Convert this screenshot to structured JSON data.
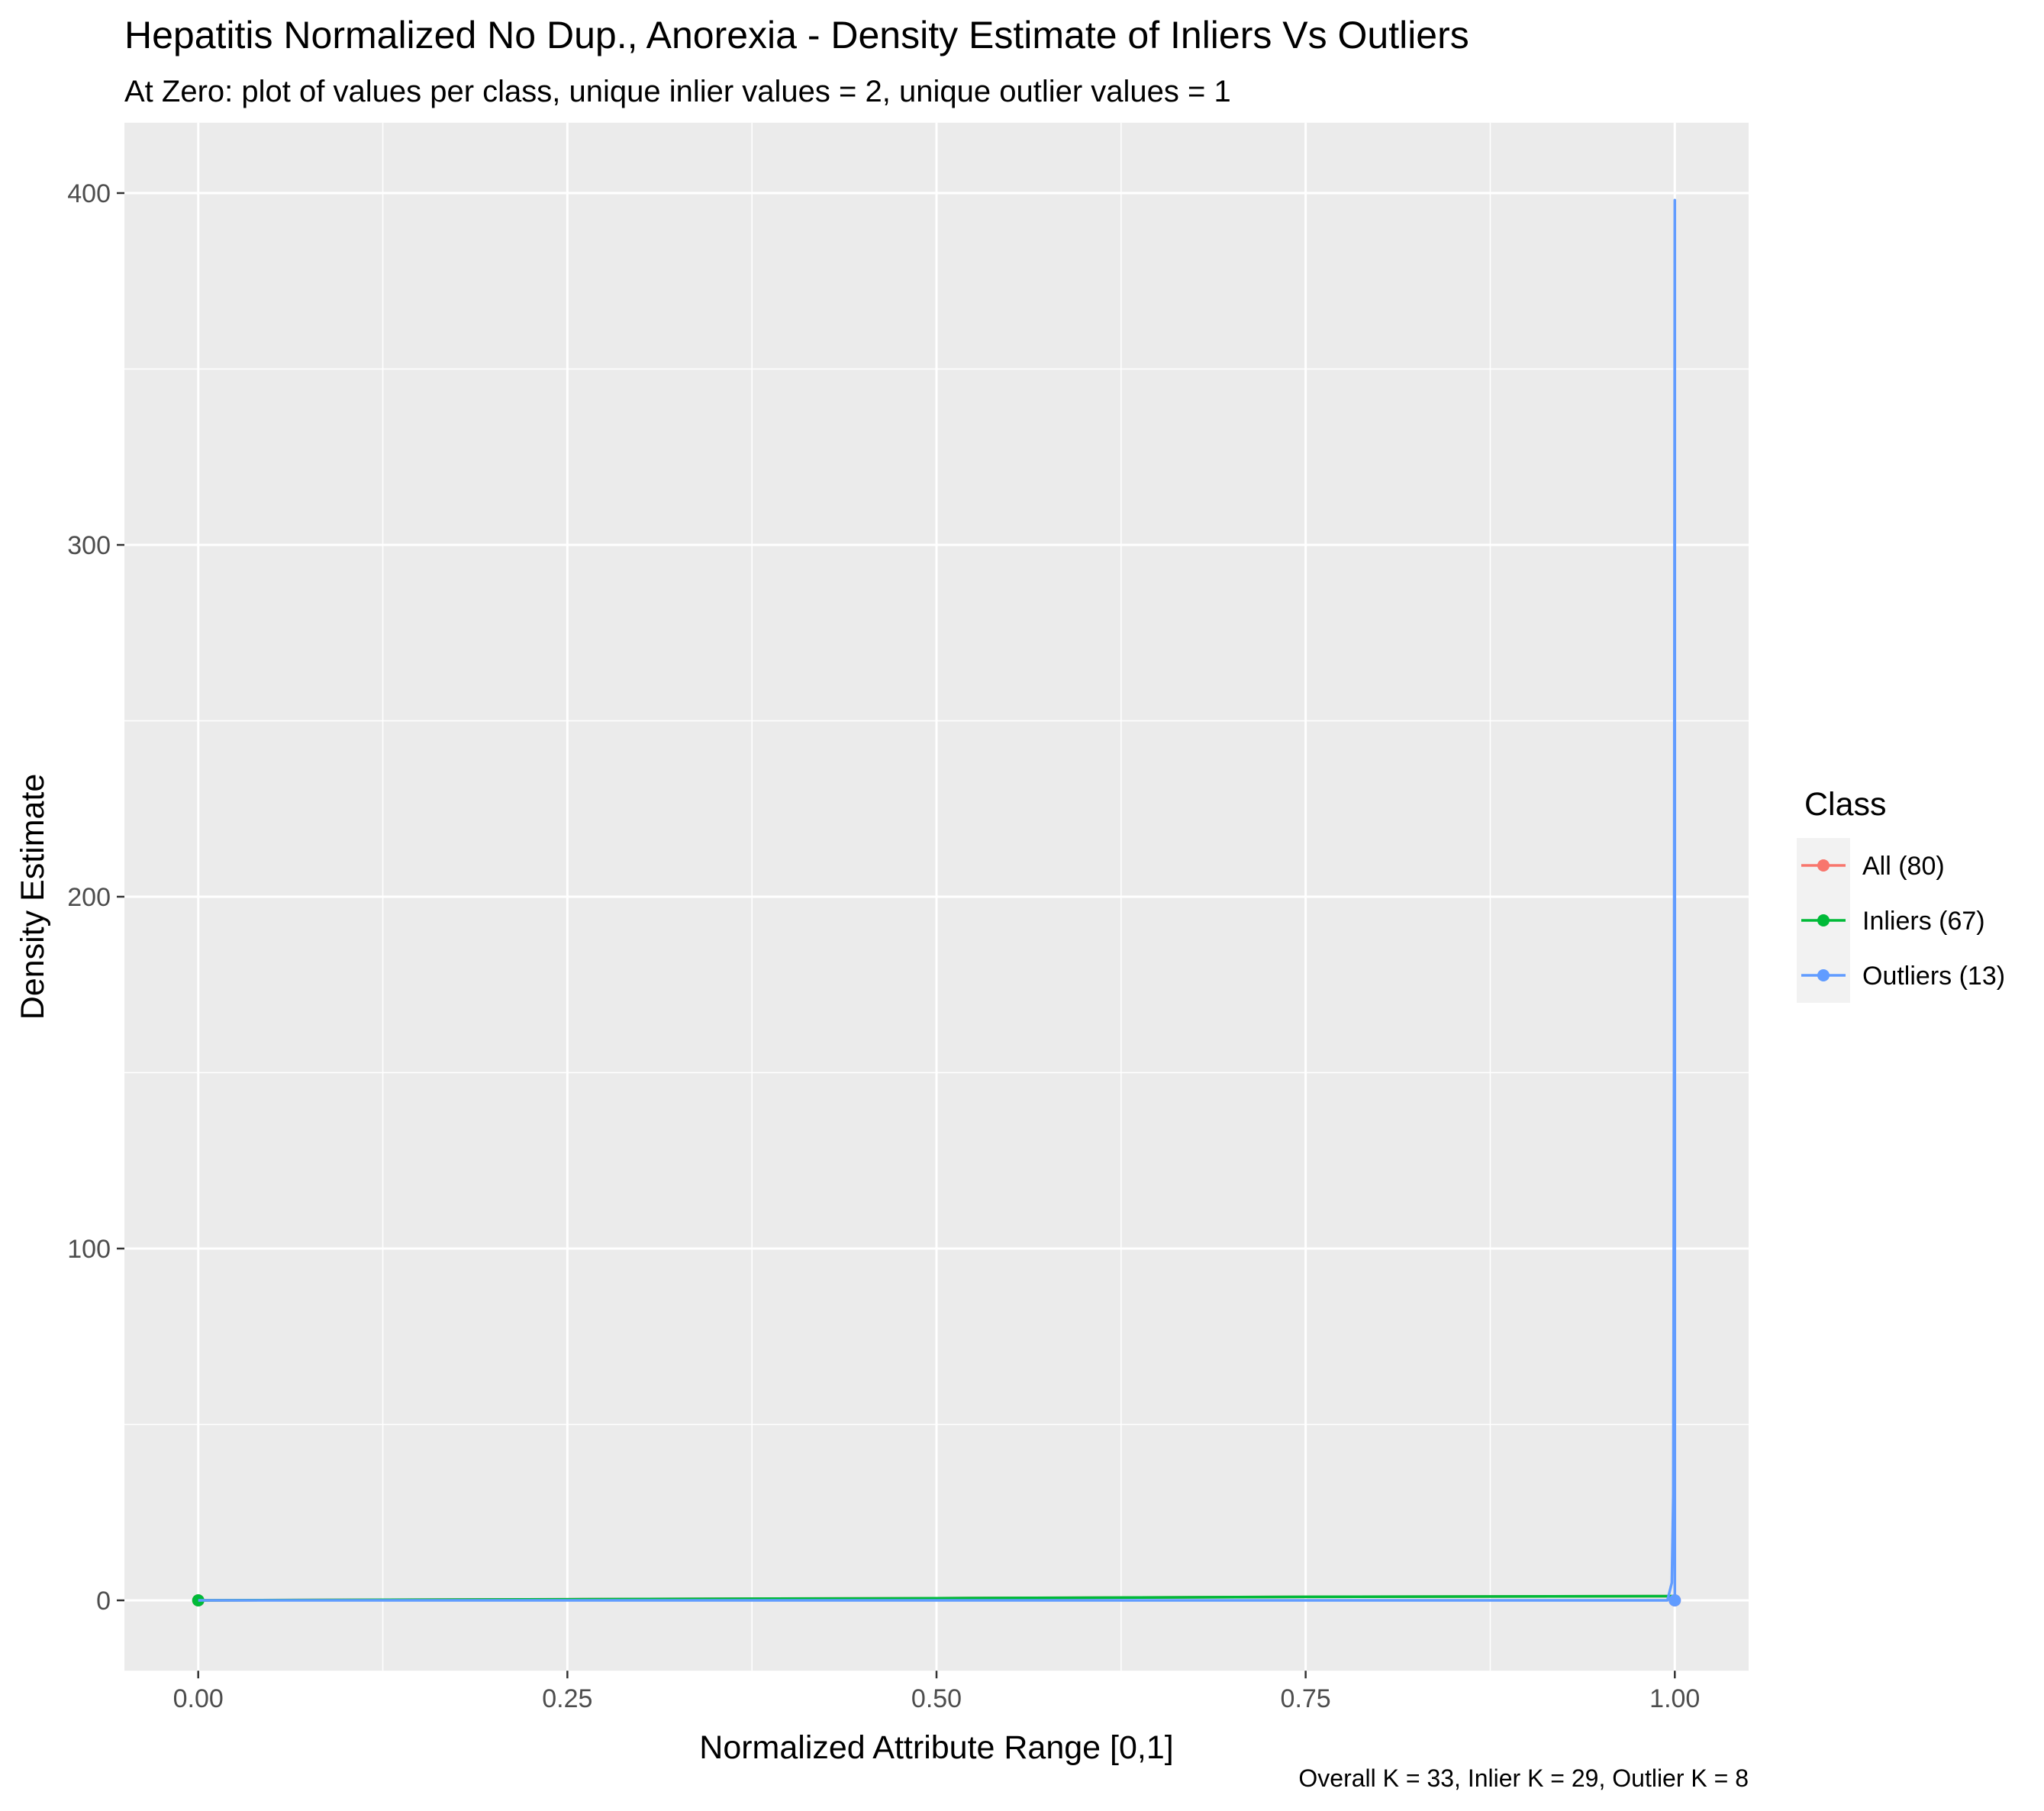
{
  "chart_data": {
    "type": "line",
    "title": "Hepatitis Normalized No Dup., Anorexia - Density Estimate of Inliers Vs Outliers",
    "subtitle": "At Zero: plot of values per class, unique inlier values = 2, unique outlier values = 1",
    "xlabel": "Normalized Attribute Range [0,1]",
    "ylabel": "Density Estimate",
    "caption": "Overall K = 33, Inlier K = 29, Outlier K = 8",
    "xlim": [
      -0.05,
      1.05
    ],
    "ylim": [
      -20,
      420
    ],
    "x_ticks": [
      0,
      0.25,
      0.5,
      0.75,
      1
    ],
    "x_tick_labels": [
      "0.00",
      "0.25",
      "0.50",
      "0.75",
      "1.00"
    ],
    "y_ticks": [
      0,
      100,
      200,
      300,
      400
    ],
    "y_tick_labels": [
      "0",
      "100",
      "200",
      "300",
      "400"
    ],
    "grid": true,
    "legend": {
      "title": "Class",
      "position": "right",
      "entries": [
        {
          "label": "All (80)",
          "color": "#F8766D"
        },
        {
          "label": "Inliers (67)",
          "color": "#00BA38"
        },
        {
          "label": "Outliers (13)",
          "color": "#619CFF"
        }
      ]
    },
    "series": [
      {
        "name": "All (80)",
        "color": "#F8766D",
        "x": [
          0,
          0.25,
          0.5,
          0.75,
          0.999,
          1.0
        ],
        "y": [
          0,
          0.3,
          0.6,
          1.0,
          1.2,
          0
        ],
        "points": [
          {
            "x": 0,
            "y": 0
          },
          {
            "x": 1,
            "y": 0
          }
        ]
      },
      {
        "name": "Inliers (67)",
        "color": "#00BA38",
        "x": [
          0,
          0.25,
          0.5,
          0.75,
          0.999,
          1.0
        ],
        "y": [
          0,
          0.3,
          0.6,
          1.0,
          1.2,
          0
        ],
        "points": [
          {
            "x": 0,
            "y": 0
          }
        ]
      },
      {
        "name": "Outliers (13)",
        "color": "#619CFF",
        "x": [
          0,
          0.5,
          0.995,
          0.998,
          0.999,
          0.9995,
          1.0,
          1.0
        ],
        "y": [
          0,
          0,
          0,
          5,
          30,
          150,
          398,
          0
        ],
        "points": [
          {
            "x": 1,
            "y": 0
          }
        ]
      }
    ]
  }
}
